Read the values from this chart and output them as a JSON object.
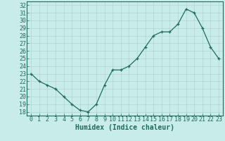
{
  "x": [
    0,
    1,
    2,
    3,
    4,
    5,
    6,
    7,
    8,
    9,
    10,
    11,
    12,
    13,
    14,
    15,
    16,
    17,
    18,
    19,
    20,
    21,
    22,
    23
  ],
  "y": [
    23,
    22,
    21.5,
    21,
    20,
    19,
    18.2,
    18,
    19,
    21.5,
    23.5,
    23.5,
    24,
    25,
    26.5,
    28,
    28.5,
    28.5,
    29.5,
    31.5,
    31,
    29,
    26.5,
    25
  ],
  "line_color": "#1f6b5a",
  "marker_color": "#1f6b5a",
  "bg_color": "#c8ece9",
  "grid_color": "#b0d4cd",
  "xlabel": "Humidex (Indice chaleur)",
  "xlabel_fontsize": 7,
  "tick_fontsize": 6,
  "ylim": [
    17.5,
    32.5
  ],
  "xlim": [
    -0.5,
    23.5
  ],
  "yticks": [
    18,
    19,
    20,
    21,
    22,
    23,
    24,
    25,
    26,
    27,
    28,
    29,
    30,
    31,
    32
  ],
  "xticks": [
    0,
    1,
    2,
    3,
    4,
    5,
    6,
    7,
    8,
    9,
    10,
    11,
    12,
    13,
    14,
    15,
    16,
    17,
    18,
    19,
    20,
    21,
    22,
    23
  ]
}
